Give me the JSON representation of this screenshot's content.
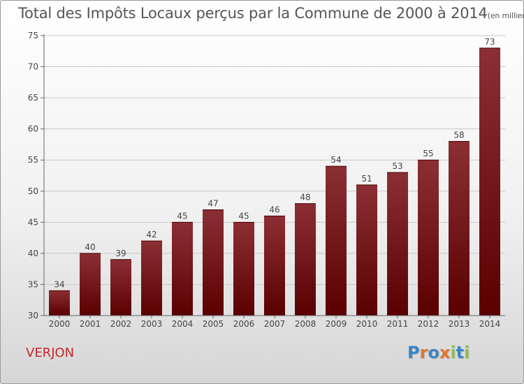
{
  "title": "Total des Impôts Locaux perçus par la Commune de 2000 à 2014",
  "title_unit": "(en milliers d'€)",
  "commune": "VERJON",
  "logo": {
    "text": "Proxiti",
    "letters": [
      {
        "ch": "P",
        "color": "#3a86c8"
      },
      {
        "ch": "r",
        "color": "#e0752d"
      },
      {
        "ch": "o",
        "color": "#3a86c8"
      },
      {
        "ch": "x",
        "color": "#e0752d"
      },
      {
        "ch": "i",
        "color": "#8bc34a"
      },
      {
        "ch": "t",
        "color": "#3a86c8"
      },
      {
        "ch": "i",
        "color": "#8bc34a"
      }
    ]
  },
  "colors": {
    "bar_top": "#8b2f35",
    "bar_bottom": "#5a0000",
    "axis": "#666666",
    "grid": "#c8c8c8",
    "text": "#444444",
    "commune": "#c62828"
  },
  "chart_data": {
    "type": "bar",
    "title": "Total des Impôts Locaux perçus par la Commune de 2000 à 2014",
    "categories": [
      "2000",
      "2001",
      "2002",
      "2003",
      "2004",
      "2005",
      "2006",
      "2007",
      "2008",
      "2009",
      "2010",
      "2011",
      "2012",
      "2013",
      "2014"
    ],
    "values": [
      34,
      40,
      39,
      42,
      45,
      47,
      45,
      46,
      48,
      54,
      51,
      53,
      55,
      58,
      73
    ],
    "ylim": [
      30,
      75
    ],
    "yticks": [
      30,
      35,
      40,
      45,
      50,
      55,
      60,
      65,
      70,
      75
    ],
    "grid": true,
    "data_labels": true
  }
}
